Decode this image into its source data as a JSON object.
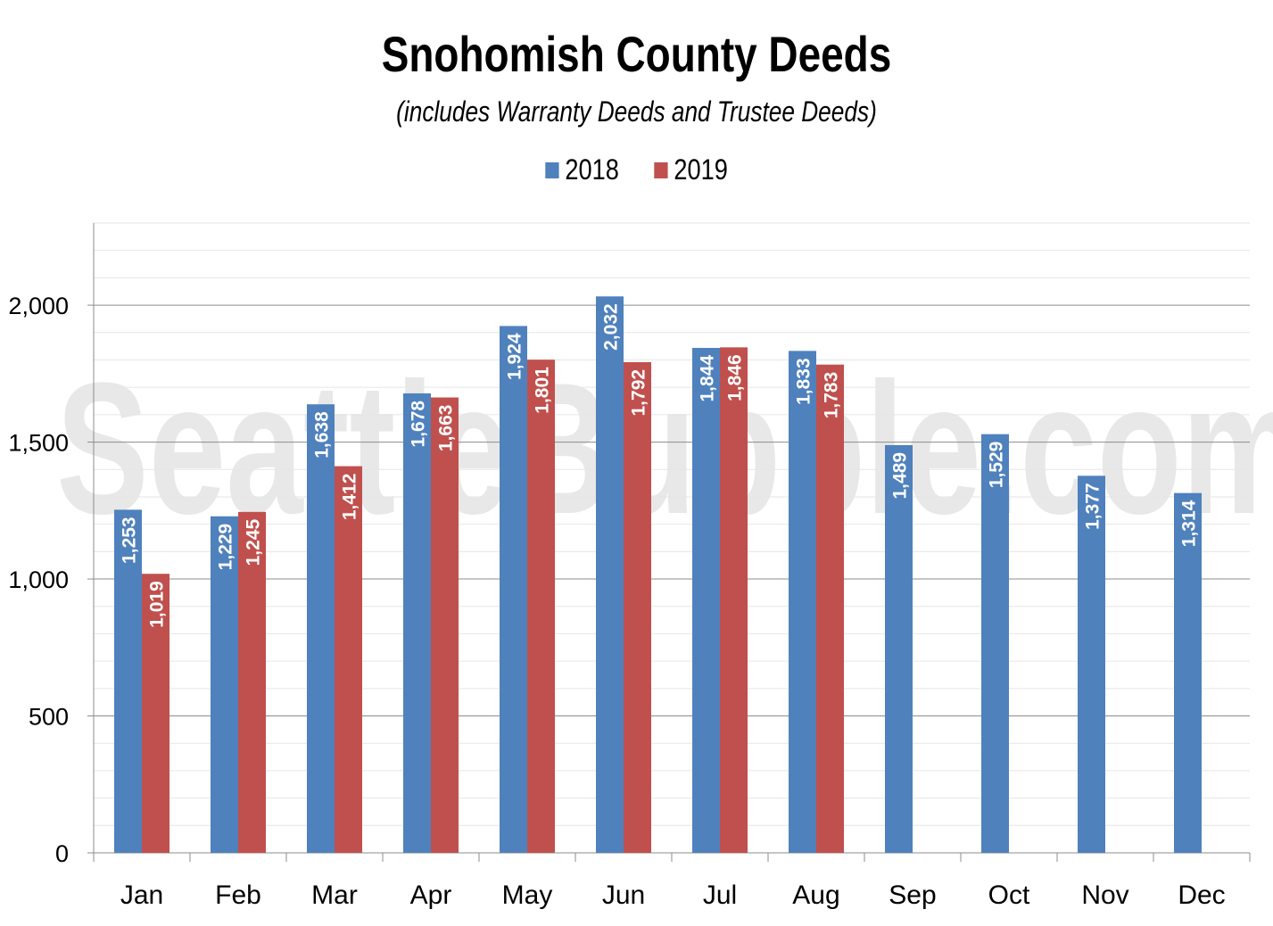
{
  "chart_data": {
    "type": "bar",
    "title": "Snohomish County Deeds",
    "subtitle": "(includes Warranty Deeds and Trustee Deeds)",
    "categories": [
      "Jan",
      "Feb",
      "Mar",
      "Apr",
      "May",
      "Jun",
      "Jul",
      "Aug",
      "Sep",
      "Oct",
      "Nov",
      "Dec"
    ],
    "series": [
      {
        "name": "2018",
        "color": "#4f81bd",
        "values": [
          1253,
          1229,
          1638,
          1678,
          1924,
          2032,
          1844,
          1833,
          1489,
          1529,
          1377,
          1314
        ]
      },
      {
        "name": "2019",
        "color": "#c0504d",
        "values": [
          1019,
          1245,
          1412,
          1663,
          1801,
          1792,
          1846,
          1783,
          null,
          null,
          null,
          null
        ]
      }
    ],
    "data_labels": [
      [
        "1,253",
        "1,229",
        "1,638",
        "1,678",
        "1,924",
        "2,032",
        "1,844",
        "1,833",
        "1,489",
        "1,529",
        "1,377",
        "1,314"
      ],
      [
        "1,019",
        "1,245",
        "1,412",
        "1,663",
        "1,801",
        "1,792",
        "1,846",
        "1,783"
      ]
    ],
    "yticks": [
      0,
      500,
      1000,
      1500,
      2000
    ],
    "ytick_labels": [
      "0",
      "500",
      "1,000",
      "1,500",
      "2,000"
    ],
    "ylim": [
      0,
      2300
    ],
    "xlabel": "",
    "ylabel": "",
    "grid": true,
    "legend_position": "top-center",
    "watermark": "SeattleBubble.com"
  }
}
